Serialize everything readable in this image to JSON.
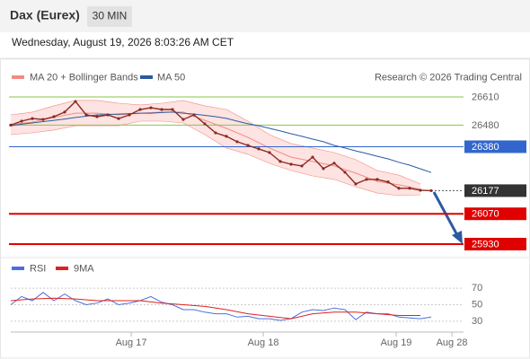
{
  "header": {
    "title": "Dax (Eurex)",
    "interval": "30 MIN",
    "timestamp": "Wednesday, August 19, 2026 8:03:26 AM CET"
  },
  "credit": "Research © 2026 Trading Central",
  "chart_data": [
    {
      "type": "line",
      "x": [
        0,
        1,
        2,
        3,
        4,
        5,
        6,
        7,
        8,
        9,
        10,
        11,
        12,
        13,
        14,
        15,
        16,
        17,
        18,
        19,
        20,
        21,
        22,
        23,
        24,
        25,
        26,
        27,
        28,
        29,
        30,
        31,
        32,
        33,
        34,
        35,
        36,
        37,
        38,
        39
      ],
      "values": [
        26480,
        26498,
        26510,
        26506,
        26519,
        26540,
        26589,
        26527,
        26519,
        26527,
        26510,
        26527,
        26552,
        26560,
        26552,
        26552,
        26506,
        26527,
        26486,
        26444,
        26428,
        26403,
        26386,
        26370,
        26353,
        26312,
        26299,
        26291,
        26332,
        26279,
        26304,
        26262,
        26208,
        26229,
        26229,
        26217,
        26188,
        26188,
        26179,
        26177
      ],
      "color": "#8b2a22",
      "series": [
        {
          "name": "MA 50",
          "color": "#2c5aa0",
          "values": [
            26477,
            26484,
            26490,
            26496,
            26502,
            26508,
            26515,
            26521,
            26527,
            26529,
            26531,
            26533,
            26535,
            26535,
            26538,
            26540,
            26535,
            26531,
            26525,
            26519,
            26511,
            26498,
            26486,
            26477,
            26465,
            26453,
            26440,
            26428,
            26415,
            26403,
            26386,
            26374,
            26361,
            26349,
            26336,
            26324,
            26308,
            26295,
            26278,
            26261
          ]
        }
      ],
      "band": {
        "name": "MA 20 + Bollinger Bands",
        "color": "#f28b82",
        "fill": "#fde3e1",
        "x": [
          0,
          2,
          4,
          6,
          8,
          10,
          12,
          14,
          16,
          18,
          20,
          22,
          24,
          26,
          28,
          30,
          32,
          34,
          36,
          38
        ],
        "ma": [
          26482,
          26494,
          26515,
          26535,
          26535,
          26527,
          26535,
          26540,
          26540,
          26502,
          26465,
          26423,
          26374,
          26332,
          26312,
          26291,
          26258,
          26220,
          26204,
          26183
        ],
        "upper": [
          26527,
          26540,
          26569,
          26594,
          26594,
          26581,
          26573,
          26581,
          26594,
          26569,
          26552,
          26498,
          26436,
          26395,
          26374,
          26353,
          26320,
          26270,
          26249,
          26208
        ],
        "lower": [
          26436,
          26444,
          26457,
          26477,
          26477,
          26477,
          26498,
          26498,
          26490,
          26436,
          26374,
          26345,
          26303,
          26270,
          26245,
          26229,
          26195,
          26166,
          26154,
          26158
        ]
      },
      "levels": [
        {
          "value": 26610,
          "color": "#8bc34a",
          "style": "thin"
        },
        {
          "value": 26480,
          "color": "#8bc34a",
          "style": "thin"
        },
        {
          "value": 26380,
          "color": "#3366cc",
          "style": "solid"
        },
        {
          "value": 26177,
          "color": "#333333",
          "style": "dotted"
        },
        {
          "value": 26070,
          "color": "#e00000",
          "style": "bold"
        },
        {
          "value": 25930,
          "color": "#e00000",
          "style": "bold"
        }
      ],
      "xlim": [
        0,
        42
      ],
      "ylim": [
        25876,
        26664
      ]
    },
    {
      "type": "line",
      "x": [
        0,
        1,
        2,
        3,
        4,
        5,
        6,
        7,
        8,
        9,
        10,
        11,
        12,
        13,
        14,
        15,
        16,
        17,
        18,
        19,
        20,
        21,
        22,
        23,
        24,
        25,
        26,
        27,
        28,
        29,
        30,
        31,
        32,
        33,
        34,
        35,
        36,
        37,
        38,
        39
      ],
      "series": [
        {
          "name": "RSI",
          "color": "#4a6fdc",
          "values": [
            50,
            60,
            55,
            65,
            55,
            63,
            55,
            50,
            52,
            57,
            50,
            52,
            55,
            60,
            53,
            50,
            44,
            44,
            41,
            39,
            39,
            35,
            36,
            33,
            33,
            31,
            33,
            41,
            44,
            43,
            46,
            44,
            32,
            41,
            39,
            39,
            35,
            34,
            33,
            35
          ]
        },
        {
          "name": "9MA",
          "color": "#e02020",
          "x": [
            0,
            2,
            4,
            6,
            8,
            10,
            12,
            14,
            16,
            18,
            20,
            22,
            24,
            26,
            28,
            30,
            32,
            34,
            36,
            38
          ],
          "values": [
            55,
            57,
            58,
            57,
            55,
            55,
            55,
            52,
            50,
            48,
            44,
            39,
            36,
            33,
            39,
            41,
            41,
            39,
            37,
            37
          ]
        }
      ],
      "xlim": [
        0,
        42
      ],
      "ylim": [
        19,
        80
      ],
      "yticks": [
        30,
        50,
        70
      ],
      "xticks": [
        {
          "value": 11.17,
          "label": "Aug 17"
        },
        {
          "value": 23.42,
          "label": "Aug 18"
        },
        {
          "value": 35.75,
          "label": "Aug 19"
        },
        {
          "value": 40.92,
          "label": "Aug 28"
        }
      ]
    }
  ]
}
